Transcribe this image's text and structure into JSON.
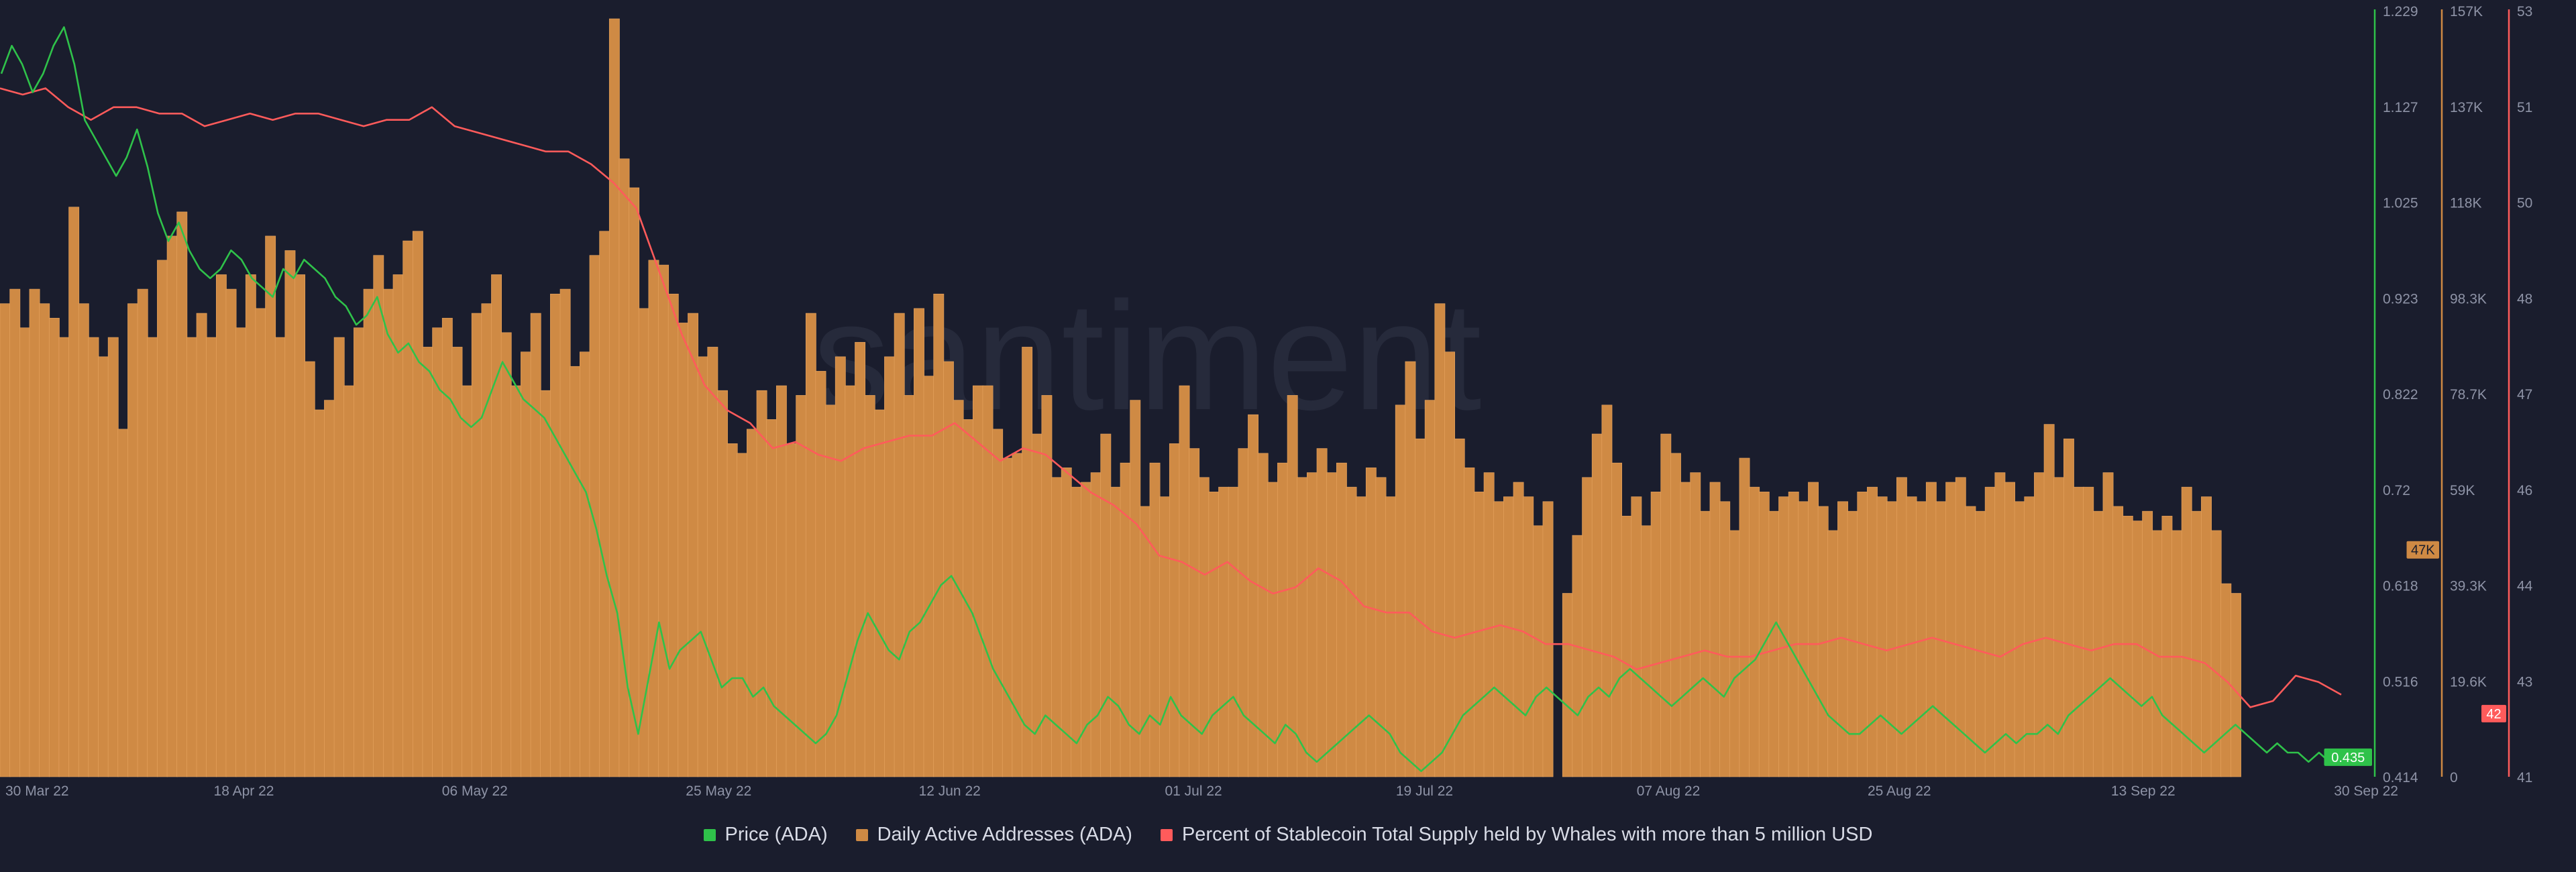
{
  "colors": {
    "background": "#1a1d2d",
    "price": "#2fc24a",
    "active_addresses": "#cf8a44",
    "active_addresses_border": "#e8a560",
    "whales": "#ff5b5b",
    "watermark": "#262a3b",
    "axis_text": "#8e93a6"
  },
  "watermark": "santiment",
  "chart_data": {
    "type": "line",
    "x_tick_labels": [
      "30 Mar 22",
      "18 Apr 22",
      "06 May 22",
      "25 May 22",
      "12 Jun 22",
      "01 Jul 22",
      "19 Jul 22",
      "07 Aug 22",
      "25 Aug 22",
      "13 Sep 22",
      "30 Sep 22"
    ],
    "x_range": [
      "2022-03-30",
      "2022-09-30"
    ],
    "legend": [
      {
        "name": "Price (ADA)",
        "color": "#2fc24a"
      },
      {
        "name": "Daily Active Addresses (ADA)",
        "color": "#cf8a44"
      },
      {
        "name": "Percent of Stablecoin Total Supply held by Whales with more than 5 million USD",
        "color": "#ff5b5b"
      }
    ],
    "axes": [
      {
        "series": "Price (ADA)",
        "ticks": [
          "1.229",
          "1.127",
          "1.025",
          "0.923",
          "0.822",
          "0.72",
          "0.618",
          "0.516",
          "0.414"
        ],
        "range": [
          0.414,
          1.229
        ],
        "last_value": "0.435"
      },
      {
        "series": "Daily Active Addresses (ADA)",
        "ticks": [
          "157K",
          "137K",
          "118K",
          "98.3K",
          "78.7K",
          "59K",
          "39.3K",
          "19.6K",
          "0"
        ],
        "range": [
          0,
          157000
        ],
        "last_value": "47K"
      },
      {
        "series": "Percent of Stablecoin Total Supply held by Whales with more than 5 million USD",
        "ticks": [
          "53",
          "51",
          "50",
          "48",
          "47",
          "46",
          "44",
          "43",
          "41"
        ],
        "range": [
          41,
          53
        ],
        "last_value": "42"
      }
    ],
    "series": [
      {
        "name": "Daily Active Addresses (ADA)",
        "type": "bar",
        "values": [
          98000,
          101000,
          93000,
          101000,
          98000,
          95000,
          91000,
          118000,
          98000,
          91000,
          87000,
          91000,
          72000,
          98000,
          101000,
          91000,
          107000,
          112000,
          117000,
          91000,
          96000,
          91000,
          104000,
          101000,
          93000,
          104000,
          97000,
          112000,
          91000,
          109000,
          104000,
          86000,
          76000,
          78000,
          91000,
          81000,
          93000,
          101000,
          108000,
          101000,
          104000,
          111000,
          113000,
          89000,
          93000,
          95000,
          89000,
          81000,
          96000,
          98000,
          104000,
          92000,
          81000,
          88000,
          96000,
          80000,
          100000,
          101000,
          85000,
          88000,
          108000,
          113000,
          157000,
          128000,
          122000,
          97000,
          107000,
          106000,
          100000,
          94000,
          96000,
          87000,
          89000,
          80000,
          69000,
          67000,
          72000,
          80000,
          74000,
          81000,
          69000,
          79000,
          96000,
          84000,
          77000,
          87000,
          81000,
          90000,
          79000,
          76000,
          87000,
          96000,
          79000,
          97000,
          83000,
          100000,
          86000,
          78000,
          74000,
          81000,
          81000,
          72000,
          66000,
          67000,
          89000,
          71000,
          79000,
          62000,
          64000,
          60000,
          61000,
          63000,
          71000,
          60000,
          65000,
          78000,
          56000,
          65000,
          58000,
          69000,
          81000,
          68000,
          62000,
          59000,
          60000,
          60000,
          68000,
          75000,
          67000,
          61000,
          65000,
          79000,
          62000,
          63000,
          68000,
          63000,
          65000,
          60000,
          58000,
          64000,
          62000,
          58000,
          77000,
          86000,
          70000,
          78000,
          98000,
          88000,
          70000,
          64000,
          59000,
          63000,
          57000,
          58000,
          61000,
          58000,
          52000,
          57000,
          0,
          38000,
          50000,
          62000,
          71000,
          77000,
          65000,
          54000,
          58000,
          52000,
          59000,
          71000,
          67000,
          61000,
          63000,
          55000,
          61000,
          57000,
          51000,
          66000,
          60000,
          59000,
          55000,
          58000,
          59000,
          57000,
          61000,
          56000,
          51000,
          57000,
          55000,
          59000,
          60000,
          58000,
          57000,
          62000,
          58000,
          57000,
          61000,
          57000,
          61000,
          62000,
          56000,
          55000,
          60000,
          63000,
          61000,
          57000,
          58000,
          63000,
          73000,
          62000,
          70000,
          60000,
          60000,
          55000,
          63000,
          56000,
          54000,
          53000,
          55000,
          51000,
          54000,
          51000,
          60000,
          55000,
          58000,
          51000,
          40000,
          38000
        ]
      },
      {
        "name": "Price (ADA)",
        "type": "line",
        "values": [
          1.17,
          1.2,
          1.18,
          1.15,
          1.17,
          1.2,
          1.22,
          1.18,
          1.12,
          1.1,
          1.08,
          1.06,
          1.08,
          1.11,
          1.07,
          1.02,
          0.99,
          1.01,
          0.98,
          0.96,
          0.95,
          0.96,
          0.98,
          0.97,
          0.95,
          0.94,
          0.93,
          0.96,
          0.95,
          0.97,
          0.96,
          0.95,
          0.93,
          0.92,
          0.9,
          0.91,
          0.93,
          0.89,
          0.87,
          0.88,
          0.86,
          0.85,
          0.83,
          0.82,
          0.8,
          0.79,
          0.8,
          0.83,
          0.86,
          0.84,
          0.82,
          0.81,
          0.8,
          0.78,
          0.76,
          0.74,
          0.72,
          0.68,
          0.63,
          0.59,
          0.51,
          0.46,
          0.52,
          0.58,
          0.53,
          0.55,
          0.56,
          0.57,
          0.54,
          0.51,
          0.52,
          0.52,
          0.5,
          0.51,
          0.49,
          0.48,
          0.47,
          0.46,
          0.45,
          0.46,
          0.48,
          0.52,
          0.56,
          0.59,
          0.57,
          0.55,
          0.54,
          0.57,
          0.58,
          0.6,
          0.62,
          0.63,
          0.61,
          0.59,
          0.56,
          0.53,
          0.51,
          0.49,
          0.47,
          0.46,
          0.48,
          0.47,
          0.46,
          0.45,
          0.47,
          0.48,
          0.5,
          0.49,
          0.47,
          0.46,
          0.48,
          0.47,
          0.5,
          0.48,
          0.47,
          0.46,
          0.48,
          0.49,
          0.5,
          0.48,
          0.47,
          0.46,
          0.45,
          0.47,
          0.46,
          0.44,
          0.43,
          0.44,
          0.45,
          0.46,
          0.47,
          0.48,
          0.47,
          0.46,
          0.44,
          0.43,
          0.42,
          0.43,
          0.44,
          0.46,
          0.48,
          0.49,
          0.5,
          0.51,
          0.5,
          0.49,
          0.48,
          0.5,
          0.51,
          0.5,
          0.49,
          0.48,
          0.5,
          0.51,
          0.5,
          0.52,
          0.53,
          0.52,
          0.51,
          0.5,
          0.49,
          0.5,
          0.51,
          0.52,
          0.51,
          0.5,
          0.52,
          0.53,
          0.54,
          0.56,
          0.58,
          0.56,
          0.54,
          0.52,
          0.5,
          0.48,
          0.47,
          0.46,
          0.46,
          0.47,
          0.48,
          0.47,
          0.46,
          0.47,
          0.48,
          0.49,
          0.48,
          0.47,
          0.46,
          0.45,
          0.44,
          0.45,
          0.46,
          0.45,
          0.46,
          0.46,
          0.47,
          0.46,
          0.48,
          0.49,
          0.5,
          0.51,
          0.52,
          0.51,
          0.5,
          0.49,
          0.5,
          0.48,
          0.47,
          0.46,
          0.45,
          0.44,
          0.45,
          0.46,
          0.47,
          0.46,
          0.45,
          0.44,
          0.45,
          0.44,
          0.44,
          0.43,
          0.44,
          0.43,
          0.435
        ]
      },
      {
        "name": "Percent of Stablecoin Total Supply held by Whales with more than 5 million USD",
        "type": "line",
        "values": [
          51.9,
          51.8,
          51.9,
          51.6,
          51.4,
          51.6,
          51.6,
          51.5,
          51.5,
          51.3,
          51.4,
          51.5,
          51.4,
          51.5,
          51.5,
          51.4,
          51.3,
          51.4,
          51.4,
          51.6,
          51.3,
          51.2,
          51.1,
          51.0,
          50.9,
          50.9,
          50.7,
          50.4,
          50.0,
          49.0,
          48.0,
          47.2,
          46.8,
          46.6,
          46.2,
          46.3,
          46.1,
          46.0,
          46.2,
          46.3,
          46.4,
          46.4,
          46.6,
          46.3,
          46.0,
          46.2,
          46.1,
          45.8,
          45.5,
          45.3,
          45.0,
          44.5,
          44.4,
          44.2,
          44.4,
          44.1,
          43.9,
          44.0,
          44.3,
          44.1,
          43.7,
          43.6,
          43.6,
          43.3,
          43.2,
          43.3,
          43.4,
          43.3,
          43.1,
          43.1,
          43.0,
          42.9,
          42.7,
          42.8,
          42.9,
          43.0,
          42.9,
          42.9,
          43.0,
          43.1,
          43.1,
          43.2,
          43.1,
          43.0,
          43.1,
          43.2,
          43.1,
          43.0,
          42.9,
          43.1,
          43.2,
          43.1,
          43.0,
          43.1,
          43.1,
          42.9,
          42.9,
          42.8,
          42.5,
          42.1,
          42.2,
          42.6,
          42.5,
          42.3
        ]
      }
    ]
  }
}
